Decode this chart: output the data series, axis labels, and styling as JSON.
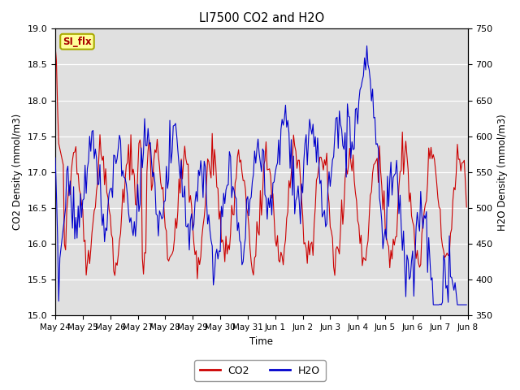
{
  "title": "LI7500 CO2 and H2O",
  "xlabel": "Time",
  "ylabel_left": "CO2 Density (mmol/m3)",
  "ylabel_right": "H2O Density (mmol/m3)",
  "co2_color": "#CC0000",
  "h2o_color": "#0000CC",
  "ylim_left": [
    15.0,
    19.0
  ],
  "ylim_right": [
    350,
    750
  ],
  "annotation_text": "SI_flx",
  "annotation_facecolor": "#FFFF99",
  "annotation_edgecolor": "#AAAA00",
  "annotation_textcolor": "#AA0000",
  "legend_entries": [
    "CO2",
    "H2O"
  ],
  "bg_color": "#E0E0E0",
  "seed": 1234,
  "n_points": 360
}
